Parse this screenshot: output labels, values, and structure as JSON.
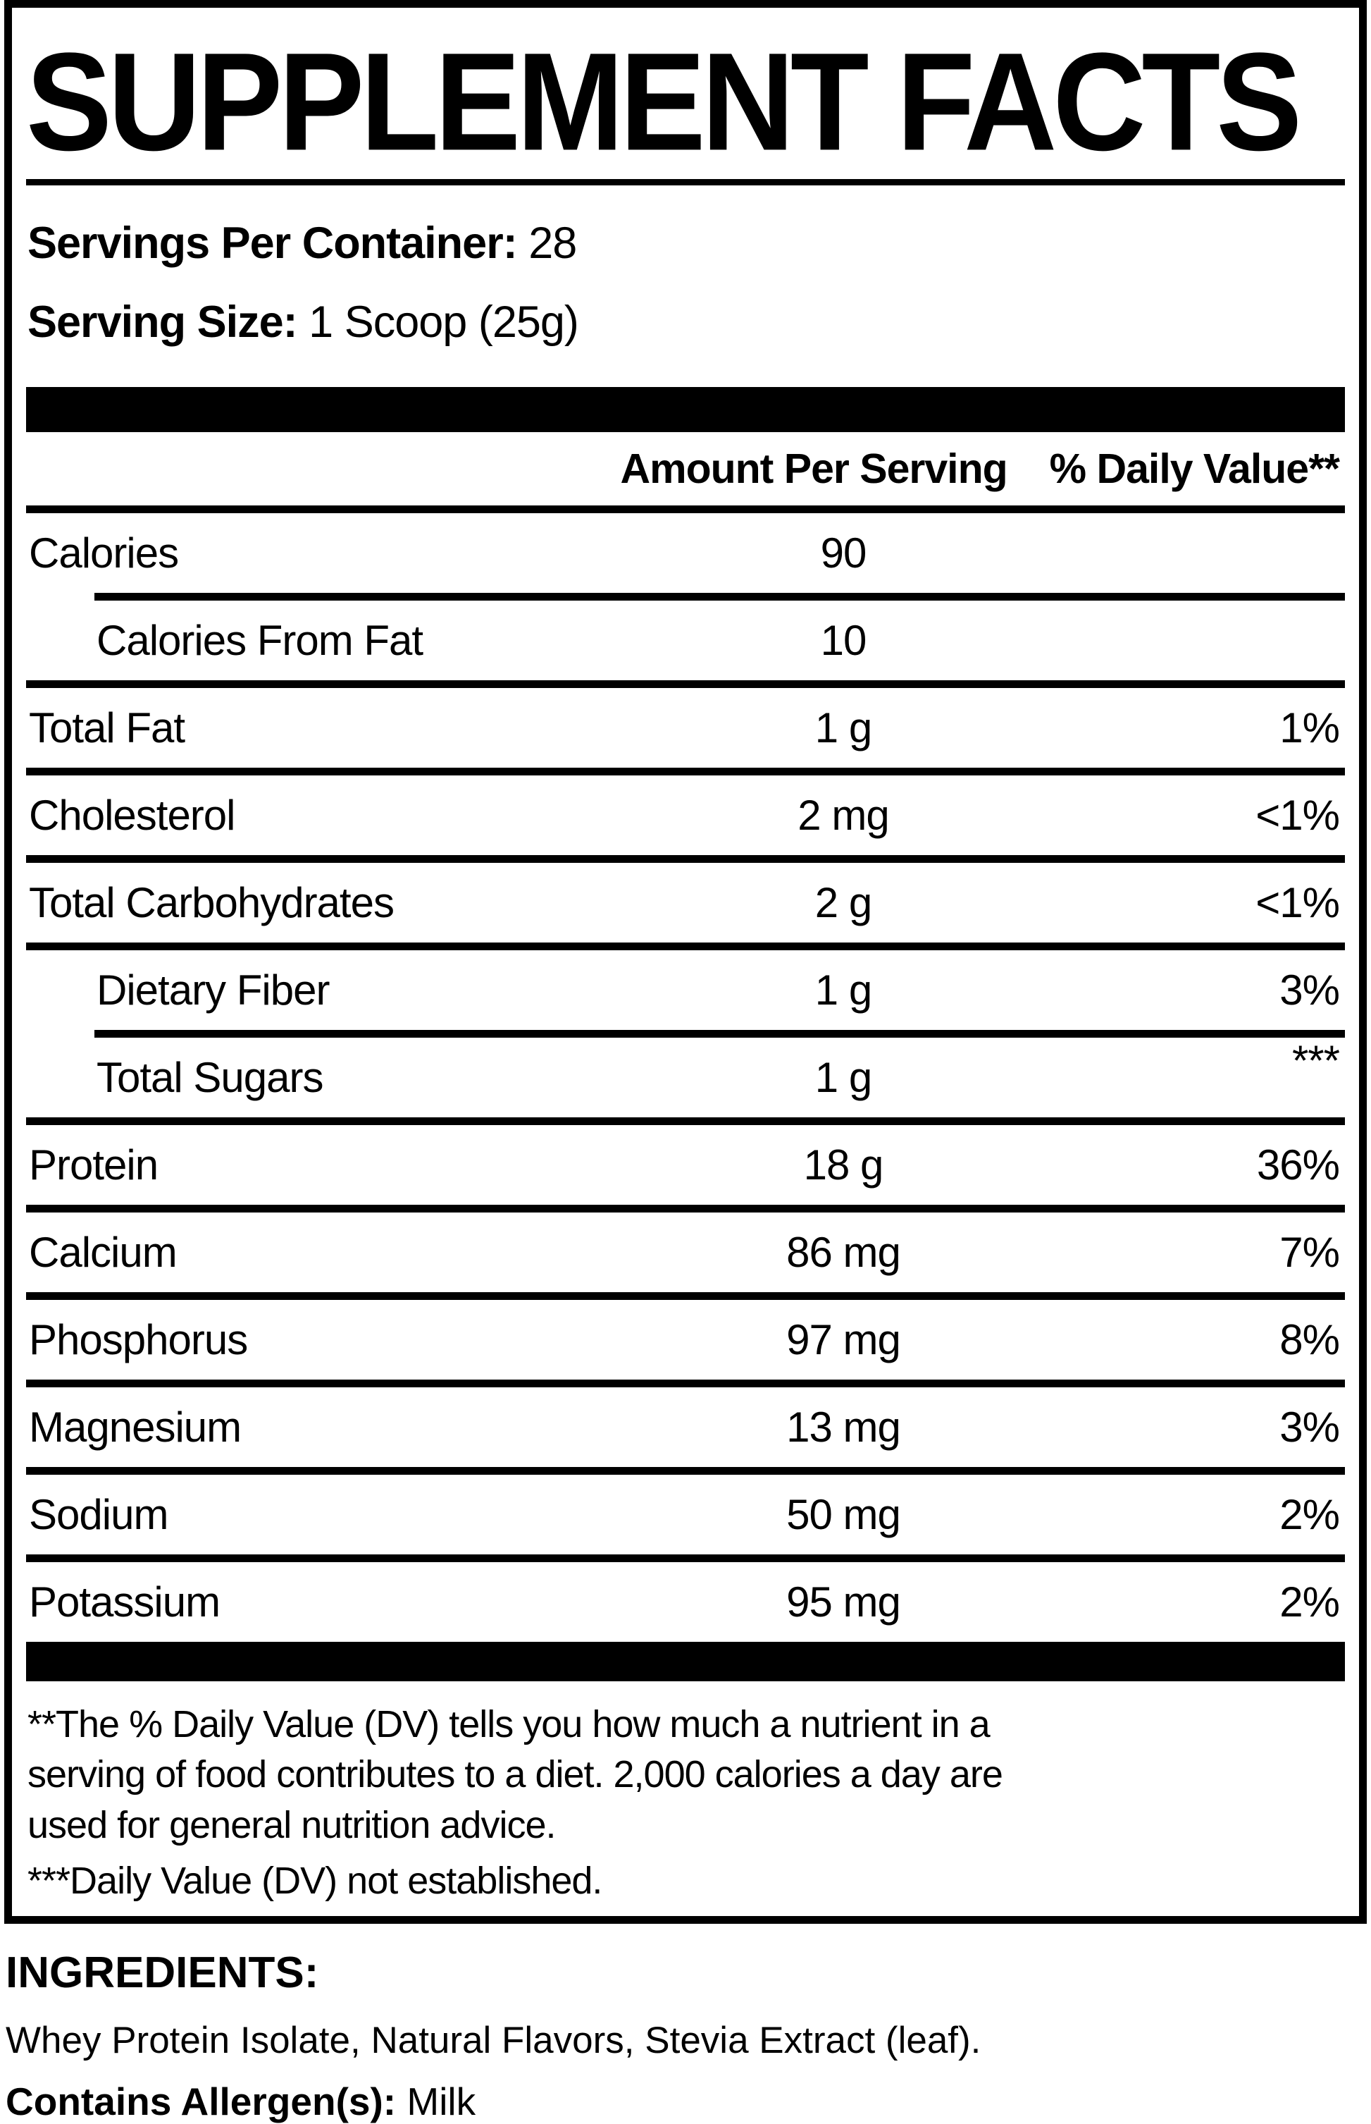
{
  "title": "SUPPLEMENT FACTS",
  "serving_info": {
    "servings_label": "Servings Per Container:",
    "servings_value": "28",
    "size_label": "Serving Size:",
    "size_value": "1 Scoop (25g)"
  },
  "table": {
    "header": {
      "amount": "Amount Per Serving",
      "daily_value": "% Daily Value**"
    },
    "rows": [
      {
        "name": "Calories",
        "amount": "90",
        "dv": ""
      },
      {
        "name": "Calories From Fat",
        "amount": "10",
        "dv": ""
      },
      {
        "name": "Total Fat",
        "amount": "1 g",
        "dv": "1%"
      },
      {
        "name": "Cholesterol",
        "amount": "2 mg",
        "dv": "<1%"
      },
      {
        "name": "Total Carbohydrates",
        "amount": "2 g",
        "dv": "<1%"
      },
      {
        "name": "Dietary Fiber",
        "amount": "1 g",
        "dv": "3%"
      },
      {
        "name": "Total Sugars",
        "amount": "1 g",
        "dv": "***"
      },
      {
        "name": "Protein",
        "amount": "18 g",
        "dv": "36%"
      },
      {
        "name": "Calcium",
        "amount": "86 mg",
        "dv": "7%"
      },
      {
        "name": "Phosphorus",
        "amount": "97 mg",
        "dv": "8%"
      },
      {
        "name": "Magnesium",
        "amount": "13 mg",
        "dv": "3%"
      },
      {
        "name": "Sodium",
        "amount": "50 mg",
        "dv": "2%"
      },
      {
        "name": "Potassium",
        "amount": "95 mg",
        "dv": "2%"
      }
    ]
  },
  "footnotes": {
    "daily_value_note": "**The % Daily Value (DV) tells you how much a nutrient in a serving of food contributes to a diet. 2,000 calories a day are used for general nutrition advice.",
    "not_established_note": "***Daily Value (DV) not established."
  },
  "ingredients": {
    "heading": "INGREDIENTS:",
    "list": "Whey Protein Isolate, Natural Flavors, Stevia Extract (leaf).",
    "allergen_label": "Contains Allergen(s):",
    "allergen_value": "Milk"
  },
  "colors": {
    "ink": "#000000",
    "paper": "#ffffff"
  }
}
